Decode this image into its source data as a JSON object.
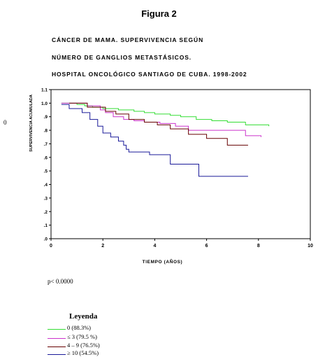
{
  "figure_label": "Figura 2",
  "title_lines": [
    "CÁNCER DE MAMA. SUPERVIVENCIA SEGÚN",
    "NÚMERO DE GANGLIOS METASTÁSICOS.",
    "HOSPITAL ONCOLÓGICO SANTIAGO DE CUBA.  1998-2002"
  ],
  "side_label": "0",
  "p_value": "p< 0.0000",
  "legend": {
    "title": "Leyenda",
    "items": [
      {
        "label": "0    (88.3%)",
        "color": "#33dd33"
      },
      {
        "label": "≤ 3 (79.5 %)",
        "color": "#cc33cc"
      },
      {
        "label": "4 – 9 (76.5%)",
        "color": "#660000"
      },
      {
        "label": "≥ 10 (54.5%)",
        "color": "#1a1a99"
      }
    ]
  },
  "chart_data": {
    "type": "line",
    "step": true,
    "xlabel": "TIEMPO (AÑOS)",
    "ylabel": "SUPERVIVENCIA ACUMULADA",
    "xlim": [
      0,
      10
    ],
    "ylim": [
      0,
      1.1
    ],
    "x_ticks": [
      "0",
      "2",
      "4",
      "6",
      "8",
      "10"
    ],
    "y_ticks": [
      ".0",
      ".1",
      ".2",
      ".3",
      ".4",
      ".5",
      ".6",
      ".7",
      ".8",
      ".9",
      "1.0",
      "1.1"
    ],
    "y_tick_values": [
      0,
      0.1,
      0.2,
      0.3,
      0.4,
      0.5,
      0.6,
      0.7,
      0.8,
      0.9,
      1.0,
      1.1
    ],
    "x_tick_values": [
      0,
      2,
      4,
      6,
      8,
      10
    ],
    "series": [
      {
        "name": "0",
        "color": "#33dd33",
        "x": [
          0.4,
          1.0,
          1.3,
          1.6,
          2.0,
          2.6,
          3.2,
          3.6,
          4.0,
          4.6,
          5.0,
          5.6,
          6.2,
          6.8,
          7.5,
          8.4
        ],
        "y": [
          1.0,
          0.99,
          0.98,
          0.97,
          0.96,
          0.95,
          0.94,
          0.93,
          0.92,
          0.91,
          0.9,
          0.88,
          0.87,
          0.86,
          0.84,
          0.83
        ]
      },
      {
        "name": "≤ 3",
        "color": "#cc33cc",
        "x": [
          0.4,
          1.4,
          1.9,
          2.1,
          2.4,
          2.8,
          3.2,
          3.6,
          4.2,
          4.8,
          5.3,
          6.2,
          7.5,
          8.1
        ],
        "y": [
          1.0,
          0.98,
          0.95,
          0.93,
          0.9,
          0.88,
          0.87,
          0.86,
          0.85,
          0.83,
          0.8,
          0.8,
          0.76,
          0.75
        ]
      },
      {
        "name": "4 – 9",
        "color": "#660000",
        "x": [
          0.7,
          1.4,
          2.1,
          2.5,
          3.0,
          3.6,
          4.1,
          4.6,
          5.3,
          6.0,
          6.8,
          7.6
        ],
        "y": [
          1.0,
          0.97,
          0.94,
          0.92,
          0.88,
          0.86,
          0.84,
          0.81,
          0.77,
          0.74,
          0.69,
          0.69
        ]
      },
      {
        "name": "≥ 10",
        "color": "#1a1a99",
        "x": [
          0.4,
          0.7,
          1.2,
          1.5,
          1.8,
          2.0,
          2.3,
          2.6,
          2.8,
          2.9,
          3.0,
          3.8,
          4.6,
          5.7,
          7.6
        ],
        "y": [
          0.99,
          0.96,
          0.93,
          0.88,
          0.83,
          0.78,
          0.75,
          0.72,
          0.69,
          0.66,
          0.64,
          0.62,
          0.55,
          0.46,
          0.46
        ]
      }
    ]
  }
}
